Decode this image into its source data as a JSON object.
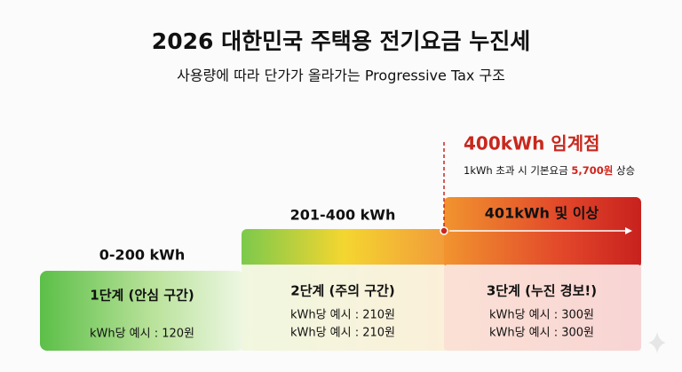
{
  "header": {
    "title": "2026 대한민국 주택용 전기요금 누진세",
    "subtitle": "사용량에 따라 단가가 올라가는 Progressive Tax 구조"
  },
  "threshold": {
    "label": "400kWh 임계점",
    "note": {
      "before": "1kWh 초과 시 기본요금",
      "highlight": "5,700원",
      "after": "상승"
    }
  },
  "tiers": [
    {
      "range": "0-200 kWh",
      "name": "1단계 (안심 구간)",
      "prices": [
        "kWh당 예시 : 120원"
      ]
    },
    {
      "range": "201-400 kWh",
      "name": "2단계 (주의 구간)",
      "prices": [
        "kWh당 예시 : 210원",
        "kWh당 예시 : 210원"
      ]
    },
    {
      "range": "401kWh 및 이상",
      "name": "3단계 (누진 경보!)",
      "prices": [
        "kWh당 예시 : 300원",
        "kWh당 예시 : 300원"
      ]
    }
  ]
}
